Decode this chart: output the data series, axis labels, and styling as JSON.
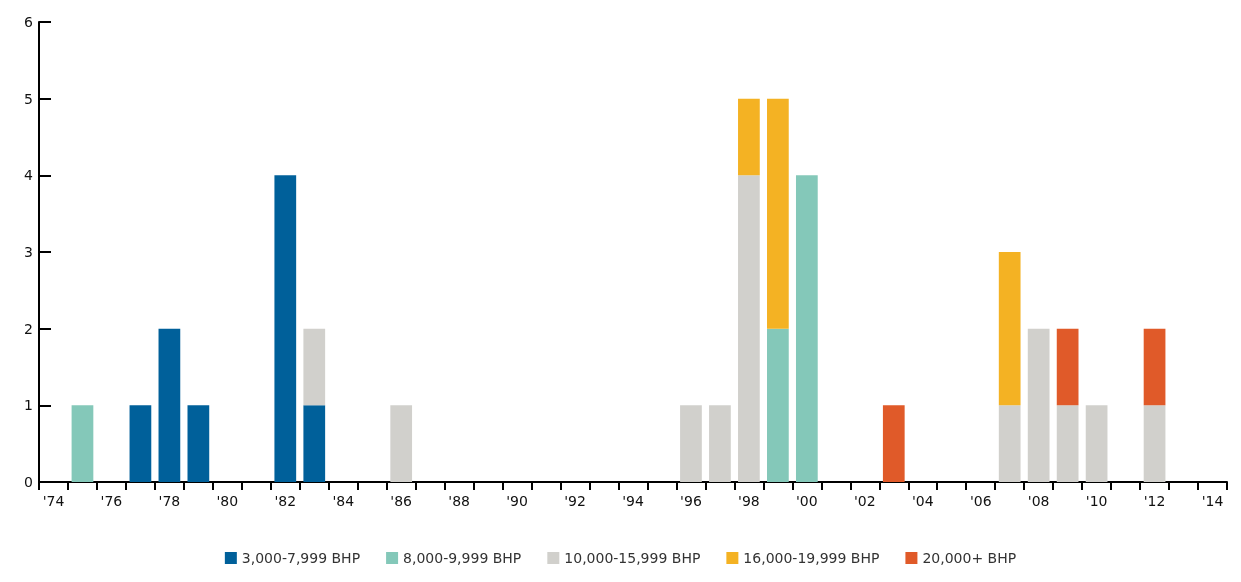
{
  "chart_data": {
    "type": "bar",
    "stacked": true,
    "categories": [
      "'74",
      null,
      "'76",
      null,
      "'78",
      null,
      "'80",
      null,
      "'82",
      null,
      "'84",
      null,
      "'86",
      null,
      "'88",
      null,
      "'90",
      null,
      "'92",
      null,
      "'94",
      null,
      "'96",
      null,
      "'98",
      null,
      "'00",
      null,
      "'02",
      null,
      "'04",
      null,
      "'06",
      null,
      "'08",
      null,
      "'10",
      null,
      "'12",
      null,
      "'14"
    ],
    "series": [
      {
        "name": "3,000-7,999 BHP",
        "color": "#00609a",
        "values": [
          null,
          null,
          null,
          1,
          2,
          1,
          null,
          null,
          4,
          1,
          null,
          null,
          null,
          null,
          null,
          null,
          null,
          null,
          null,
          null,
          null,
          null,
          null,
          null,
          null,
          null,
          null,
          null,
          null,
          null,
          null,
          null,
          null,
          null,
          null,
          null,
          null,
          null,
          null,
          null,
          null
        ]
      },
      {
        "name": "8,000-9,999 BHP",
        "color": "#84c8b9",
        "values": [
          null,
          1,
          null,
          null,
          null,
          null,
          null,
          null,
          null,
          null,
          null,
          null,
          null,
          null,
          null,
          null,
          null,
          null,
          null,
          null,
          null,
          null,
          null,
          null,
          null,
          2,
          4,
          null,
          null,
          null,
          null,
          null,
          null,
          null,
          null,
          null,
          null,
          null,
          null,
          null,
          null
        ]
      },
      {
        "name": "10,000-15,999 BHP",
        "color": "#d1d0cc",
        "values": [
          null,
          null,
          null,
          null,
          null,
          null,
          null,
          null,
          null,
          1,
          null,
          null,
          1,
          null,
          null,
          null,
          null,
          null,
          null,
          null,
          null,
          null,
          1,
          1,
          4,
          null,
          null,
          null,
          null,
          null,
          null,
          null,
          null,
          1,
          2,
          1,
          1,
          null,
          1,
          null,
          null
        ]
      },
      {
        "name": "16,000-19,999 BHP",
        "color": "#f4b223",
        "values": [
          null,
          null,
          null,
          null,
          null,
          null,
          null,
          null,
          null,
          null,
          null,
          null,
          null,
          null,
          null,
          null,
          null,
          null,
          null,
          null,
          null,
          null,
          null,
          null,
          1,
          3,
          null,
          null,
          null,
          null,
          null,
          null,
          null,
          2,
          null,
          null,
          null,
          null,
          null,
          null,
          null
        ]
      },
      {
        "name": "20,000+ BHP",
        "color": "#e05a29",
        "values": [
          null,
          null,
          null,
          null,
          null,
          null,
          null,
          null,
          null,
          null,
          null,
          null,
          null,
          null,
          null,
          null,
          null,
          null,
          null,
          null,
          null,
          null,
          null,
          null,
          null,
          null,
          null,
          null,
          null,
          1,
          null,
          null,
          null,
          null,
          null,
          1,
          null,
          null,
          1,
          null,
          null
        ]
      }
    ],
    "ylim": [
      0,
      6
    ],
    "yticks": [
      0,
      1,
      2,
      3,
      4,
      5,
      6
    ],
    "grid": false,
    "legend": "bottom"
  }
}
